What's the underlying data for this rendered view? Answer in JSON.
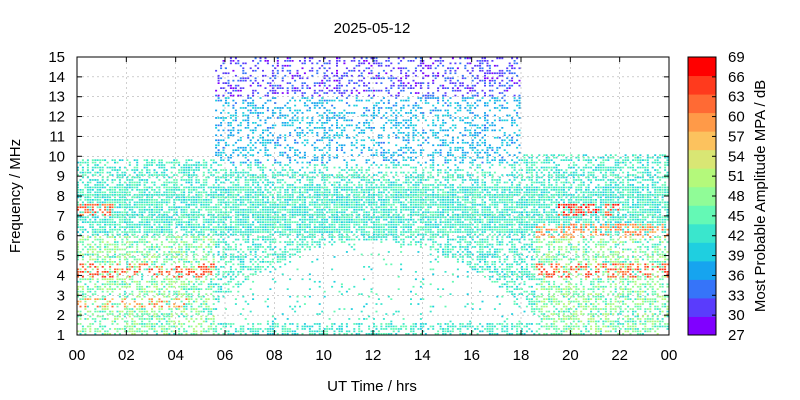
{
  "chart_data": {
    "type": "heatmap",
    "title": "2025-05-12",
    "xlabel": "UT Time / hrs",
    "ylabel": "Frequency / MHz",
    "xlim": [
      0,
      24
    ],
    "ylim": [
      1,
      15
    ],
    "x_ticks": [
      "00",
      "02",
      "04",
      "06",
      "08",
      "10",
      "12",
      "14",
      "16",
      "18",
      "20",
      "22",
      "00"
    ],
    "y_ticks": [
      "1",
      "2",
      "3",
      "4",
      "5",
      "6",
      "7",
      "8",
      "9",
      "10",
      "11",
      "12",
      "13",
      "14",
      "15"
    ],
    "grid": true,
    "colorbar": {
      "label": "Most Probable Amplitude MPA / dB",
      "range": [
        27,
        69
      ],
      "ticks": [
        "27",
        "30",
        "33",
        "36",
        "39",
        "42",
        "45",
        "48",
        "51",
        "54",
        "57",
        "60",
        "63",
        "66",
        "69"
      ],
      "colors": [
        "#8000ff",
        "#5a3cfc",
        "#3674f9",
        "#16a4ef",
        "#1fcfe0",
        "#3ae6cd",
        "#64f9b5",
        "#90fc97",
        "#b4f97b",
        "#d9e674",
        "#fcc25e",
        "#ff9a48",
        "#ff6a34",
        "#ff3a1d",
        "#ff0000"
      ]
    },
    "coverage_regions": [
      {
        "x_range": [
          0,
          5.5
        ],
        "f_range": [
          1,
          9.8
        ]
      },
      {
        "x_range": [
          5.5,
          17.9
        ],
        "f_range": [
          1,
          15
        ]
      },
      {
        "x_range": [
          17.9,
          24
        ],
        "f_range": [
          1,
          10
        ]
      }
    ],
    "high_amplitude_bands": [
      {
        "x_range": [
          0,
          5.5
        ],
        "f_range": [
          3.8,
          4.5
        ],
        "level": 63
      },
      {
        "x_range": [
          0,
          4.5
        ],
        "f_range": [
          2.3,
          2.8
        ],
        "level": 60
      },
      {
        "x_range": [
          0,
          1.5
        ],
        "f_range": [
          7.0,
          7.5
        ],
        "level": 63
      },
      {
        "x_range": [
          18.5,
          24
        ],
        "f_range": [
          3.8,
          4.5
        ],
        "level": 63
      },
      {
        "x_range": [
          19.5,
          22
        ],
        "f_range": [
          7.0,
          7.6
        ],
        "level": 65
      },
      {
        "x_range": [
          18.5,
          24
        ],
        "f_range": [
          5.8,
          6.5
        ],
        "level": 60
      }
    ],
    "low_amplitude_region": {
      "x_range": [
        5.5,
        17.9
      ],
      "f_range": [
        13,
        15
      ],
      "level": 29
    }
  }
}
